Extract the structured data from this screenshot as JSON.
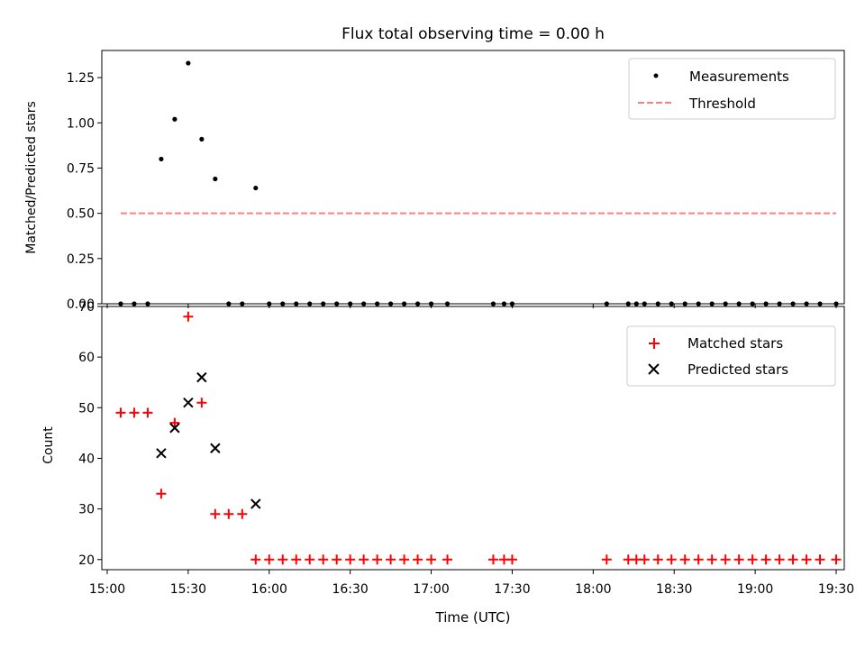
{
  "title": "Flux total observing time = 0.00 h",
  "chart_data": [
    {
      "type": "scatter",
      "panel": "top",
      "title": "Flux total observing time = 0.00 h",
      "xlabel": "",
      "ylabel": "Matched/Predicted stars",
      "xlim": [
        "14:58",
        "19:33"
      ],
      "ylim": [
        0.0,
        1.4
      ],
      "y_ticks": [
        0.0,
        0.25,
        0.5,
        0.75,
        1.0,
        1.25
      ],
      "y_tick_labels": [
        "0.00",
        "0.25",
        "0.50",
        "0.75",
        "1.00",
        "1.25"
      ],
      "legend": {
        "position": "top-right",
        "entries": [
          "Measurements",
          "Threshold"
        ]
      },
      "series": [
        {
          "name": "Measurements",
          "marker": "dot",
          "color": "#000000",
          "points": [
            [
              "15:05",
              0
            ],
            [
              "15:10",
              0
            ],
            [
              "15:15",
              0
            ],
            [
              "15:20",
              0.8
            ],
            [
              "15:25",
              1.02
            ],
            [
              "15:30",
              1.33
            ],
            [
              "15:35",
              0.91
            ],
            [
              "15:40",
              0.69
            ],
            [
              "15:45",
              0
            ],
            [
              "15:50",
              0
            ],
            [
              "15:55",
              0.64
            ],
            [
              "16:00",
              0
            ],
            [
              "16:05",
              0
            ],
            [
              "16:10",
              0
            ],
            [
              "16:15",
              0
            ],
            [
              "16:20",
              0
            ],
            [
              "16:25",
              0
            ],
            [
              "16:30",
              0
            ],
            [
              "16:35",
              0
            ],
            [
              "16:40",
              0
            ],
            [
              "16:45",
              0
            ],
            [
              "16:50",
              0
            ],
            [
              "16:55",
              0
            ],
            [
              "17:00",
              0
            ],
            [
              "17:06",
              0
            ],
            [
              "17:23",
              0
            ],
            [
              "17:27",
              0
            ],
            [
              "17:30",
              0
            ],
            [
              "18:05",
              0
            ],
            [
              "18:13",
              0
            ],
            [
              "18:16",
              0
            ],
            [
              "18:19",
              0
            ],
            [
              "18:24",
              0
            ],
            [
              "18:29",
              0
            ],
            [
              "18:34",
              0
            ],
            [
              "18:39",
              0
            ],
            [
              "18:44",
              0
            ],
            [
              "18:49",
              0
            ],
            [
              "18:54",
              0
            ],
            [
              "18:59",
              0
            ],
            [
              "19:04",
              0
            ],
            [
              "19:09",
              0
            ],
            [
              "19:14",
              0
            ],
            [
              "19:19",
              0
            ],
            [
              "19:24",
              0
            ],
            [
              "19:30",
              0
            ]
          ]
        },
        {
          "name": "Threshold",
          "marker": "dashed-line",
          "color": "#ff7f7f",
          "points": [
            [
              "15:05",
              0.5
            ],
            [
              "19:30",
              0.5
            ]
          ]
        }
      ]
    },
    {
      "type": "scatter",
      "panel": "bottom",
      "xlabel": "Time (UTC)",
      "ylabel": "Count",
      "xlim": [
        "14:58",
        "19:33"
      ],
      "ylim": [
        18,
        70
      ],
      "x_ticks": [
        "15:00",
        "15:30",
        "16:00",
        "16:30",
        "17:00",
        "17:30",
        "18:00",
        "18:30",
        "19:00",
        "19:30"
      ],
      "y_ticks": [
        20,
        30,
        40,
        50,
        60,
        70
      ],
      "legend": {
        "position": "top-right",
        "entries": [
          "Matched stars",
          "Predicted stars"
        ]
      },
      "series": [
        {
          "name": "Matched stars",
          "marker": "plus",
          "color": "#ff0000",
          "points": [
            [
              "15:05",
              49
            ],
            [
              "15:10",
              49
            ],
            [
              "15:15",
              49
            ],
            [
              "15:20",
              33
            ],
            [
              "15:25",
              47
            ],
            [
              "15:30",
              68
            ],
            [
              "15:35",
              51
            ],
            [
              "15:40",
              29
            ],
            [
              "15:45",
              29
            ],
            [
              "15:50",
              29
            ],
            [
              "15:55",
              20
            ],
            [
              "16:00",
              20
            ],
            [
              "16:05",
              20
            ],
            [
              "16:10",
              20
            ],
            [
              "16:15",
              20
            ],
            [
              "16:20",
              20
            ],
            [
              "16:25",
              20
            ],
            [
              "16:30",
              20
            ],
            [
              "16:35",
              20
            ],
            [
              "16:40",
              20
            ],
            [
              "16:45",
              20
            ],
            [
              "16:50",
              20
            ],
            [
              "16:55",
              20
            ],
            [
              "17:00",
              20
            ],
            [
              "17:06",
              20
            ],
            [
              "17:23",
              20
            ],
            [
              "17:27",
              20
            ],
            [
              "17:30",
              20
            ],
            [
              "18:05",
              20
            ],
            [
              "18:13",
              20
            ],
            [
              "18:16",
              20
            ],
            [
              "18:19",
              20
            ],
            [
              "18:24",
              20
            ],
            [
              "18:29",
              20
            ],
            [
              "18:34",
              20
            ],
            [
              "18:39",
              20
            ],
            [
              "18:44",
              20
            ],
            [
              "18:49",
              20
            ],
            [
              "18:54",
              20
            ],
            [
              "18:59",
              20
            ],
            [
              "19:04",
              20
            ],
            [
              "19:09",
              20
            ],
            [
              "19:14",
              20
            ],
            [
              "19:19",
              20
            ],
            [
              "19:24",
              20
            ],
            [
              "19:30",
              20
            ]
          ]
        },
        {
          "name": "Predicted stars",
          "marker": "x",
          "color": "#000000",
          "points": [
            [
              "15:20",
              41
            ],
            [
              "15:25",
              46
            ],
            [
              "15:30",
              51
            ],
            [
              "15:35",
              56
            ],
            [
              "15:40",
              42
            ],
            [
              "15:55",
              31
            ]
          ]
        }
      ]
    }
  ]
}
